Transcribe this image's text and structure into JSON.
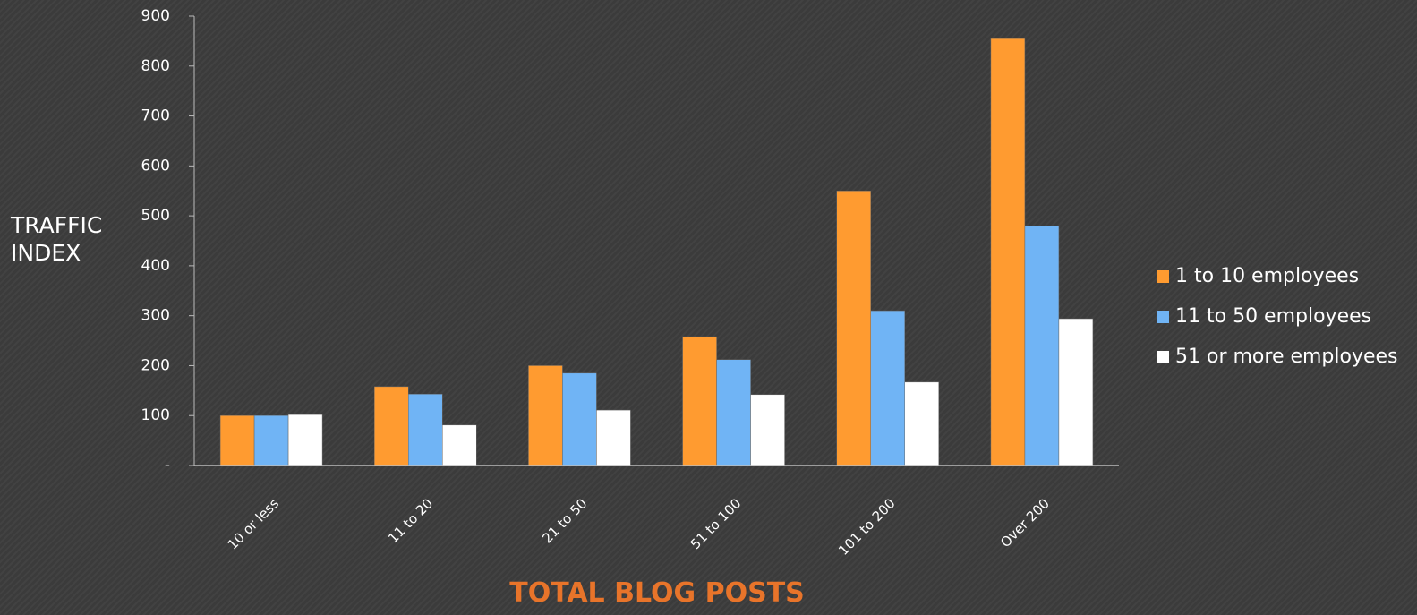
{
  "chart_data": {
    "type": "bar",
    "y_label": "TRAFFIC INDEX",
    "x_label": "TOTAL BLOG POSTS",
    "categories": [
      "10 or less",
      "11 to 20",
      "21 to 50",
      "51 to 100",
      "101 to 200",
      "Over 200"
    ],
    "series": [
      {
        "name": "1 to 10 employees",
        "color": "#ff9b30",
        "values": [
          100,
          158,
          200,
          258,
          550,
          855
        ]
      },
      {
        "name": "11 to 50 employees",
        "color": "#70b4f5",
        "values": [
          100,
          143,
          185,
          212,
          310,
          480
        ]
      },
      {
        "name": "51 or more employees",
        "color": "#ffffff",
        "values": [
          102,
          81,
          111,
          142,
          167,
          294
        ]
      }
    ],
    "ylim": [
      0,
      900
    ],
    "yticks": [
      {
        "value": 0,
        "label": "-"
      },
      100,
      200,
      300,
      400,
      500,
      600,
      700,
      800,
      900
    ],
    "legend": "right"
  }
}
